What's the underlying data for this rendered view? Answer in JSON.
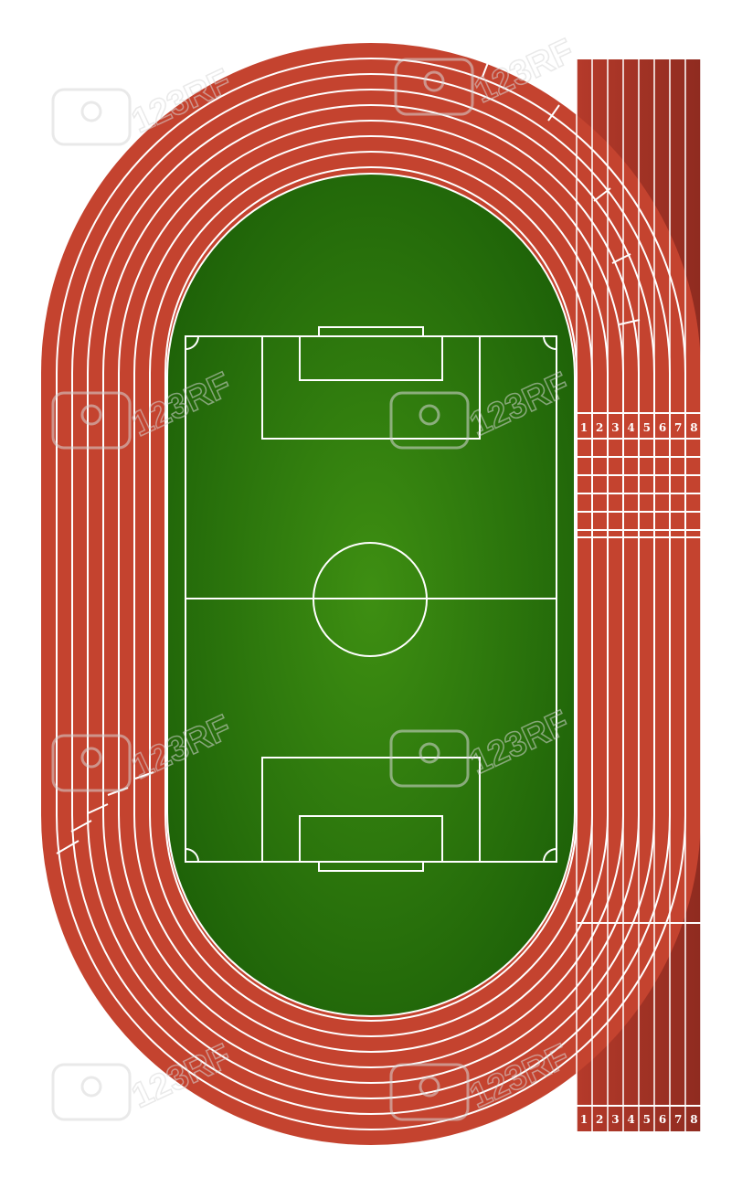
{
  "illustration": {
    "subject": "athletics track with soccer field",
    "colors": {
      "track": "#c4432f",
      "track_dark": "#9e2f22",
      "field_light": "#3e8f12",
      "field_dark": "#1d6108",
      "lines": "#ffffff"
    }
  },
  "lanes": {
    "top_numbers": [
      "1",
      "2",
      "3",
      "4",
      "5",
      "6",
      "7",
      "8"
    ],
    "bottom_numbers": [
      "1",
      "2",
      "3",
      "4",
      "5",
      "6",
      "7",
      "8"
    ]
  },
  "watermark": {
    "text": "123RF"
  }
}
